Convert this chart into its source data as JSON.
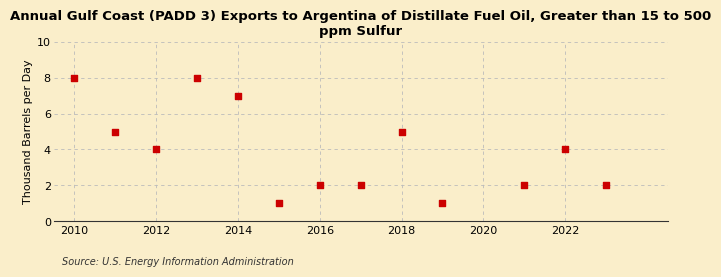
{
  "title": "Annual Gulf Coast (PADD 3) Exports to Argentina of Distillate Fuel Oil, Greater than 15 to 500\nppm Sulfur",
  "ylabel": "Thousand Barrels per Day",
  "source": "Source: U.S. Energy Information Administration",
  "x_values": [
    2010,
    2011,
    2012,
    2013,
    2014,
    2015,
    2016,
    2017,
    2018,
    2019,
    2021,
    2022,
    2023
  ],
  "y_values": [
    8,
    5,
    4,
    8,
    7,
    1,
    2,
    2,
    5,
    1,
    2,
    4,
    2
  ],
  "marker_color": "#cc0000",
  "marker_size": 4,
  "xlim": [
    2009.5,
    2024.5
  ],
  "ylim": [
    0,
    10
  ],
  "yticks": [
    0,
    2,
    4,
    6,
    8,
    10
  ],
  "xticks": [
    2010,
    2012,
    2014,
    2016,
    2018,
    2020,
    2022
  ],
  "background_color": "#faeeca",
  "grid_color": "#bbbbbb",
  "title_fontsize": 9.5,
  "label_fontsize": 8,
  "tick_fontsize": 8,
  "source_fontsize": 7
}
